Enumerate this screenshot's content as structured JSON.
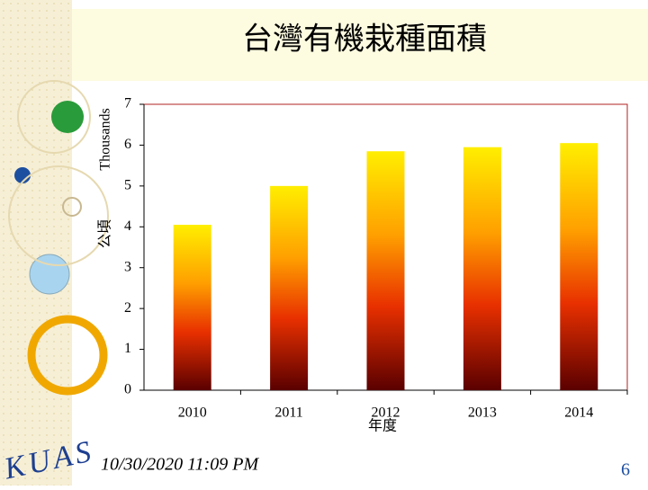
{
  "chart_data": {
    "type": "bar",
    "title": "台灣有機栽種面積",
    "y_label": "公頃",
    "y_unit_label": "Thousands",
    "x_label": "年度",
    "categories": [
      "2010",
      "2011",
      "2012",
      "2013",
      "2014"
    ],
    "values": [
      4.05,
      5.0,
      5.85,
      5.95,
      6.05
    ],
    "ylim": [
      0,
      7
    ],
    "yticks": [
      0,
      1,
      2,
      3,
      4,
      5,
      6,
      7
    ],
    "grid": false
  },
  "slide": {
    "date": "10/30/2020 11:09 PM",
    "page_number": "6",
    "logo": "KUAS"
  }
}
